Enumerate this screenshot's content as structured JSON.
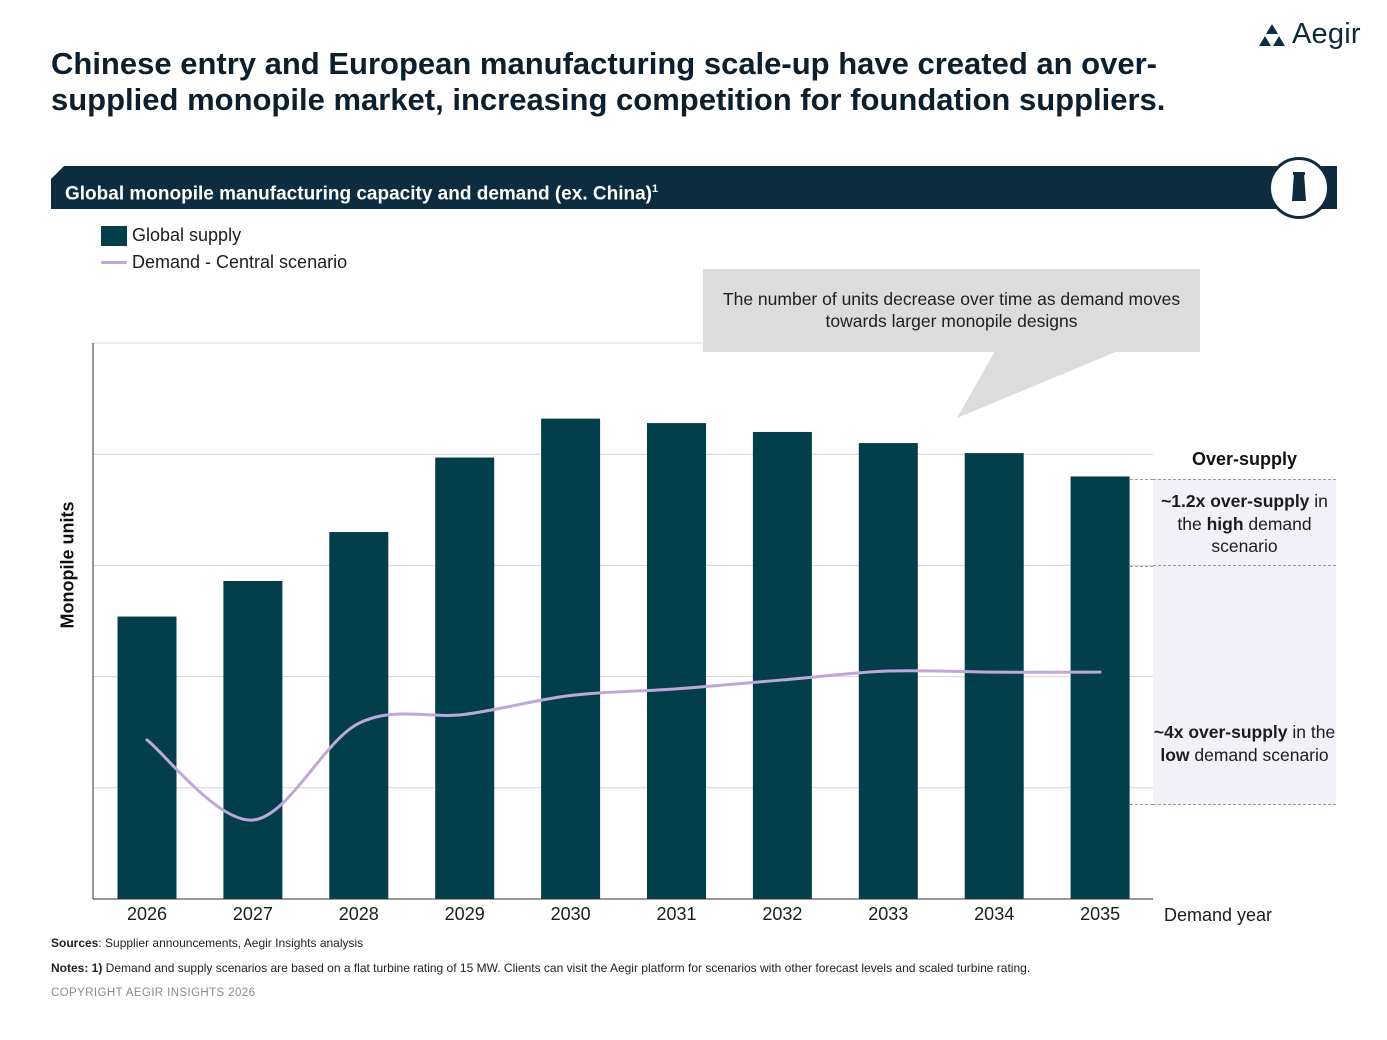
{
  "brand": {
    "logo_text": "Aegir",
    "color": "#0e2c40"
  },
  "headline": "Chinese entry and European manufacturing scale-up have created an over-supplied monopile market, increasing competition for foundation suppliers.",
  "section": {
    "title": "Global monopile manufacturing capacity and demand (ex. China)",
    "footnote_marker": "1",
    "icon": "monopile-icon"
  },
  "legend": {
    "supply_label": "Global supply",
    "demand_label": "Demand - Central scenario"
  },
  "callout": {
    "text": "The number of units decrease over time as demand moves towards larger monopile designs"
  },
  "oversupply": {
    "title": "Over-supply",
    "high": {
      "b1": "~1.2x over-supply",
      "t1": " in the ",
      "b2": "high",
      "t2": " demand scenario"
    },
    "low": {
      "b1": "~4x over-supply",
      "t1": " in the ",
      "b2": "low",
      "t2": " demand scenario"
    }
  },
  "chart_data": {
    "type": "bar",
    "ylabel": "Monopile units",
    "xlabel": "Demand year",
    "y_tick_labels_shown": false,
    "grid": true,
    "ylim": [
      0,
      5
    ],
    "categories": [
      "2026",
      "2027",
      "2028",
      "2029",
      "2030",
      "2031",
      "2032",
      "2033",
      "2034",
      "2035"
    ],
    "series": [
      {
        "name": "Global supply",
        "type": "bar",
        "color": "#033f4b",
        "values": [
          2.54,
          2.86,
          3.3,
          3.97,
          4.32,
          4.28,
          4.2,
          4.1,
          4.01,
          3.8
        ]
      },
      {
        "name": "Demand - Central scenario",
        "type": "line",
        "color": "#c0a7da",
        "values": [
          1.43,
          0.71,
          1.58,
          1.66,
          1.83,
          1.89,
          1.97,
          2.05,
          2.04,
          2.04
        ]
      }
    ]
  },
  "footer": {
    "sources_label": "Sources",
    "sources_text": ": Supplier announcements, Aegir Insights analysis",
    "notes_label": "Notes: 1)",
    "notes_text": " Demand and supply scenarios are based on a flat turbine rating of 15 MW. Clients can visit the Aegir platform for scenarios with other forecast levels and scaled turbine rating.",
    "copyright": "COPYRIGHT AEGIR INSIGHTS 2026"
  }
}
